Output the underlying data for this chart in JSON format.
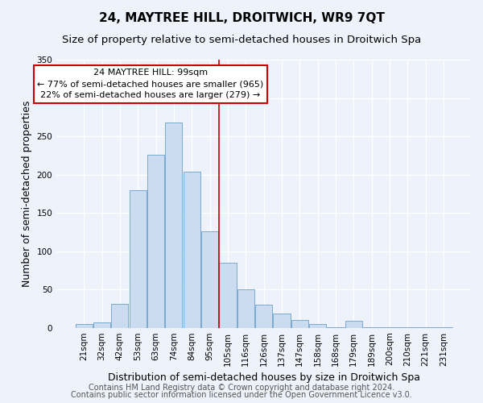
{
  "title": "24, MAYTREE HILL, DROITWICH, WR9 7QT",
  "subtitle": "Size of property relative to semi-detached houses in Droitwich Spa",
  "xlabel": "Distribution of semi-detached houses by size in Droitwich Spa",
  "ylabel": "Number of semi-detached properties",
  "bar_color": "#ccdcf0",
  "bar_edge_color": "#7aaad0",
  "categories": [
    "21sqm",
    "32sqm",
    "42sqm",
    "53sqm",
    "63sqm",
    "74sqm",
    "84sqm",
    "95sqm",
    "105sqm",
    "116sqm",
    "126sqm",
    "137sqm",
    "147sqm",
    "158sqm",
    "168sqm",
    "179sqm",
    "189sqm",
    "200sqm",
    "210sqm",
    "221sqm",
    "231sqm"
  ],
  "values": [
    5,
    7,
    31,
    180,
    226,
    268,
    204,
    126,
    85,
    50,
    30,
    19,
    10,
    5,
    1,
    9,
    1,
    1,
    1,
    1,
    1
  ],
  "ylim": [
    0,
    350
  ],
  "yticks": [
    0,
    50,
    100,
    150,
    200,
    250,
    300,
    350
  ],
  "vline_index": 7,
  "vline_label": "24 MAYTREE HILL: 99sqm",
  "annotation_line1": "← 77% of semi-detached houses are smaller (965)",
  "annotation_line2": "22% of semi-detached houses are larger (279) →",
  "box_color": "#ffffff",
  "box_edge_color": "#cc0000",
  "vline_color": "#cc0000",
  "footer1": "Contains HM Land Registry data © Crown copyright and database right 2024.",
  "footer2": "Contains public sector information licensed under the Open Government Licence v3.0.",
  "bg_color": "#eef2fa",
  "grid_color": "#ffffff",
  "title_fontsize": 11,
  "subtitle_fontsize": 9.5,
  "label_fontsize": 9,
  "tick_fontsize": 7.5,
  "footer_fontsize": 7,
  "annotation_fontsize": 8
}
